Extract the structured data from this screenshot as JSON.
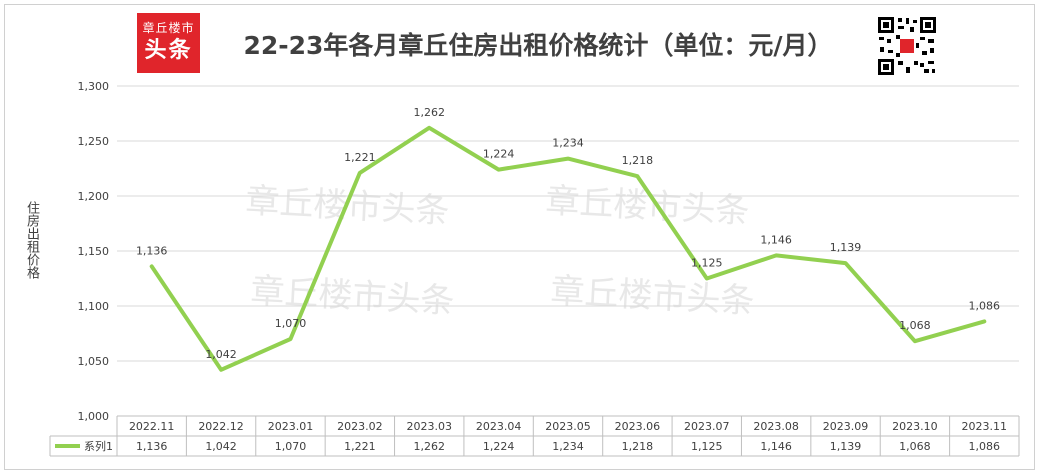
{
  "header": {
    "logo_line1": "章丘楼市",
    "logo_line2": "头条",
    "title": "22-23年各月章丘住房出租价格统计（单位：元/月）"
  },
  "watermark_text": "章丘楼市头条",
  "chart_data": {
    "type": "line",
    "title": "22-23年各月章丘住房出租价格统计（单位：元/月）",
    "ylabel": "住房出租价格",
    "xlabel": "",
    "ylim": [
      1000,
      1300
    ],
    "yticks": [
      1000,
      1050,
      1100,
      1150,
      1200,
      1250,
      1300
    ],
    "ytick_labels": [
      "1,000",
      "1,050",
      "1,100",
      "1,150",
      "1,200",
      "1,250",
      "1,300"
    ],
    "grid": true,
    "categories": [
      "2022.11",
      "2022.12",
      "2023.01",
      "2023.02",
      "2023.03",
      "2023.04",
      "2023.05",
      "2023.06",
      "2023.07",
      "2023.08",
      "2023.09",
      "2023.10",
      "2023.11"
    ],
    "series": [
      {
        "name": "系列1",
        "color": "#92d050",
        "values": [
          1136,
          1042,
          1070,
          1221,
          1262,
          1224,
          1234,
          1218,
          1125,
          1146,
          1139,
          1068,
          1086
        ],
        "labels": [
          "1,136",
          "1,042",
          "1,070",
          "1,221",
          "1,262",
          "1,224",
          "1,234",
          "1,218",
          "1,125",
          "1,146",
          "1,139",
          "1,068",
          "1,086"
        ]
      }
    ],
    "data_table": true
  }
}
